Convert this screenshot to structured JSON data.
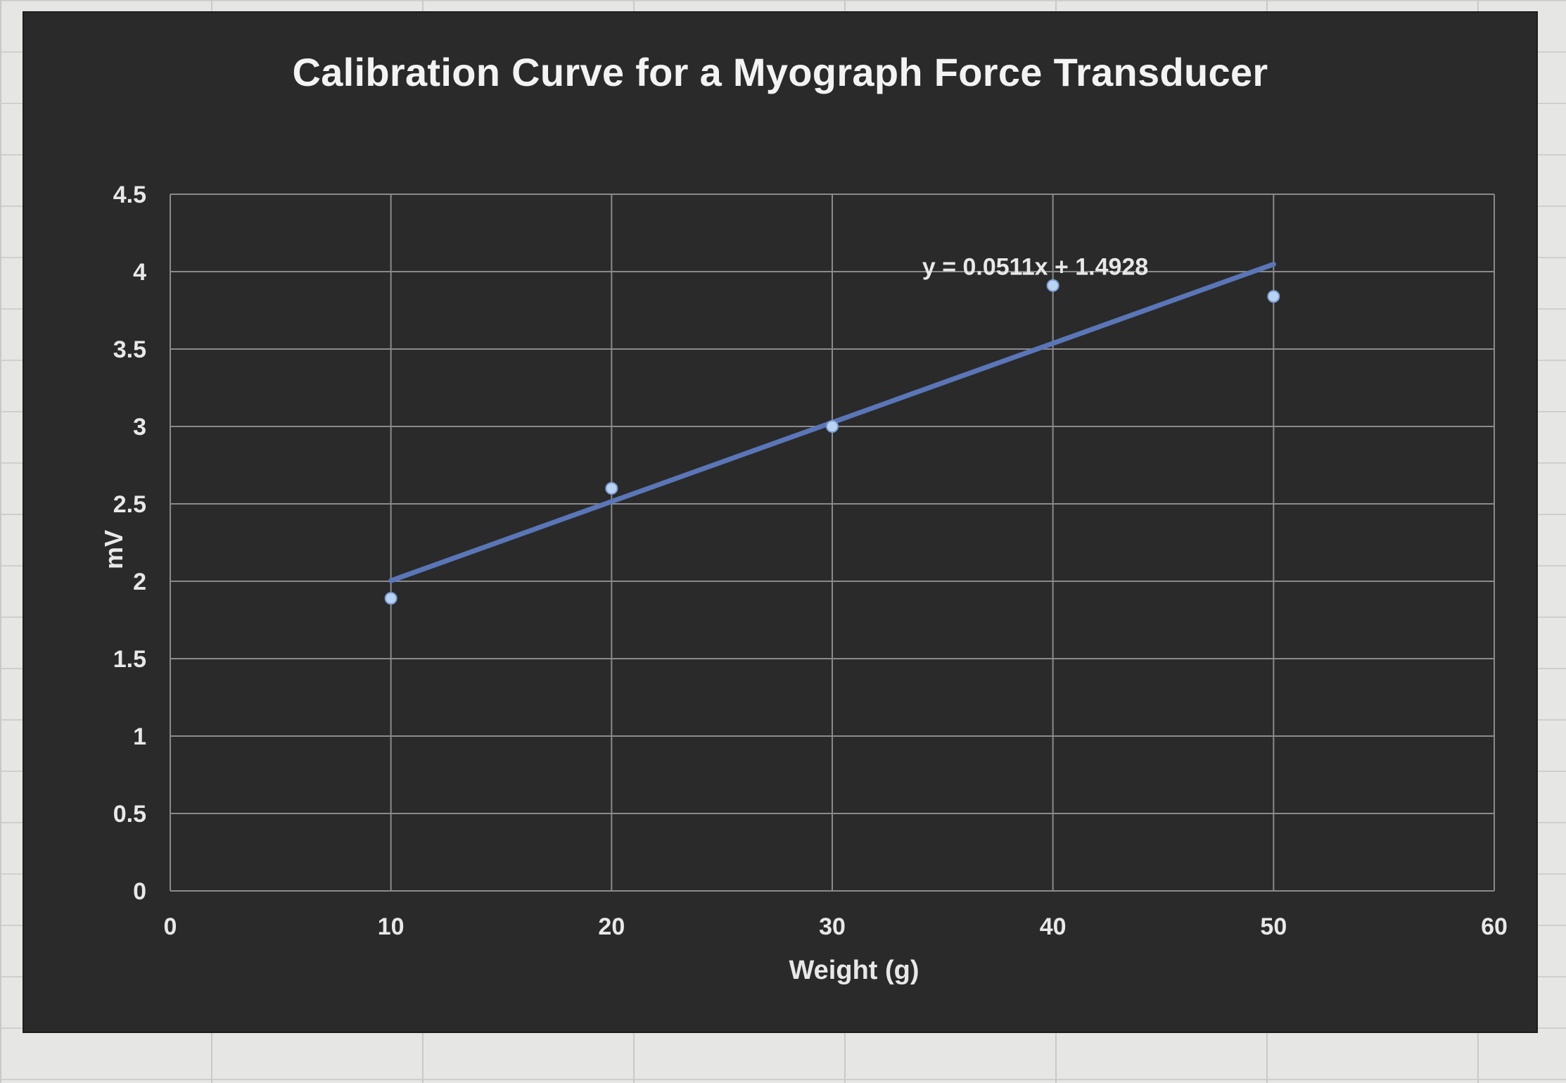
{
  "chart_data": {
    "type": "scatter",
    "title": "Calibration Curve for a Myograph Force Transducer",
    "xlabel": "Weight (g)",
    "ylabel": "mV",
    "xlim": [
      0,
      60
    ],
    "ylim": [
      0,
      4.5
    ],
    "x_ticks": [
      "0",
      "10",
      "20",
      "30",
      "40",
      "50",
      "60"
    ],
    "y_ticks": [
      "0",
      "0.5",
      "1",
      "1.5",
      "2",
      "2.5",
      "3",
      "3.5",
      "4",
      "4.5"
    ],
    "grid": true,
    "series": [
      {
        "x": [
          10,
          20,
          30,
          40,
          50
        ],
        "y": [
          1.89,
          2.6,
          3.0,
          3.91,
          3.84
        ]
      }
    ],
    "trendline": {
      "slope": 0.0511,
      "intercept": 1.4928,
      "x_range": [
        10,
        50
      ],
      "label": "y = 0.0511x + 1.4928"
    },
    "colors": {
      "background": "#2a2a2a",
      "grid": "#8a8a8a",
      "axis_text": "#e8e8e8",
      "points": "#b9d3f3",
      "trendline": "#5b76b8"
    }
  }
}
